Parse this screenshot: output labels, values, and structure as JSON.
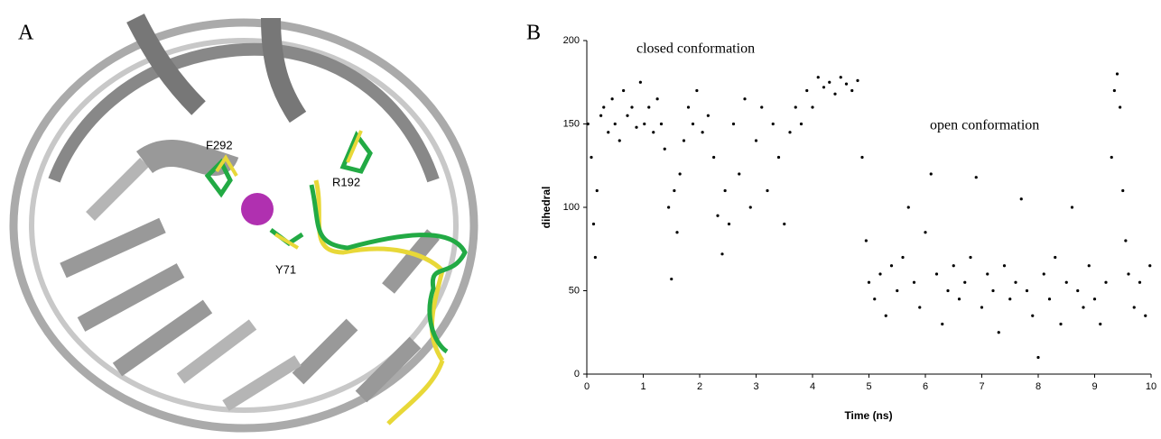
{
  "panel_a": {
    "label": "A",
    "residues": [
      "F292",
      "R192",
      "Y71"
    ]
  },
  "chart_data": {
    "type": "scatter",
    "panel_label": "B",
    "x_label": "Time (ns)",
    "y_label": "dihedral",
    "annotations": [
      "closed conformation",
      "open conformation"
    ],
    "color": "#000000",
    "xlim": [
      0,
      10
    ],
    "ylim": [
      0,
      200
    ],
    "xticks": [
      0,
      1,
      2,
      3,
      4,
      5,
      6,
      7,
      8,
      9,
      10
    ],
    "yticks": [
      0,
      50,
      100,
      150,
      200
    ],
    "x": [
      0.02,
      0.08,
      0.12,
      0.15,
      0.18,
      0.25,
      0.3,
      0.38,
      0.45,
      0.5,
      0.58,
      0.65,
      0.72,
      0.8,
      0.88,
      0.95,
      1.02,
      1.1,
      1.18,
      1.25,
      1.32,
      1.38,
      1.45,
      1.5,
      1.55,
      1.6,
      1.65,
      1.72,
      1.8,
      1.88,
      1.95,
      2.05,
      2.15,
      2.25,
      2.32,
      2.4,
      2.45,
      2.52,
      2.6,
      2.7,
      2.8,
      2.9,
      3.0,
      3.1,
      3.2,
      3.3,
      3.4,
      3.5,
      3.6,
      3.7,
      3.8,
      3.9,
      4.0,
      4.1,
      4.2,
      4.3,
      4.4,
      4.5,
      4.6,
      4.7,
      4.8,
      4.88,
      4.95,
      5.0,
      5.1,
      5.2,
      5.3,
      5.4,
      5.5,
      5.6,
      5.7,
      5.8,
      5.9,
      6.0,
      6.1,
      6.2,
      6.3,
      6.4,
      6.5,
      6.6,
      6.7,
      6.8,
      6.9,
      7.0,
      7.1,
      7.2,
      7.3,
      7.4,
      7.5,
      7.6,
      7.7,
      7.8,
      7.9,
      8.0,
      8.1,
      8.2,
      8.3,
      8.4,
      8.5,
      8.6,
      8.7,
      8.8,
      8.9,
      9.0,
      9.1,
      9.2,
      9.3,
      9.35,
      9.4,
      9.45,
      9.5,
      9.55,
      9.6,
      9.7,
      9.8,
      9.9,
      9.98
    ],
    "values": [
      150,
      130,
      90,
      70,
      110,
      155,
      160,
      145,
      165,
      150,
      140,
      170,
      155,
      160,
      148,
      175,
      150,
      160,
      145,
      165,
      150,
      135,
      100,
      57,
      110,
      85,
      120,
      140,
      160,
      150,
      170,
      145,
      155,
      130,
      95,
      72,
      110,
      90,
      150,
      120,
      165,
      100,
      140,
      160,
      110,
      150,
      130,
      90,
      145,
      160,
      150,
      170,
      160,
      178,
      172,
      175,
      168,
      178,
      174,
      170,
      176,
      130,
      80,
      55,
      45,
      60,
      35,
      65,
      50,
      70,
      100,
      55,
      40,
      85,
      120,
      60,
      30,
      50,
      65,
      45,
      55,
      70,
      118,
      40,
      60,
      50,
      25,
      65,
      45,
      55,
      105,
      50,
      35,
      10,
      60,
      45,
      70,
      30,
      55,
      100,
      50,
      40,
      65,
      45,
      30,
      55,
      130,
      170,
      180,
      160,
      110,
      80,
      60,
      40,
      55,
      35,
      65
    ]
  }
}
